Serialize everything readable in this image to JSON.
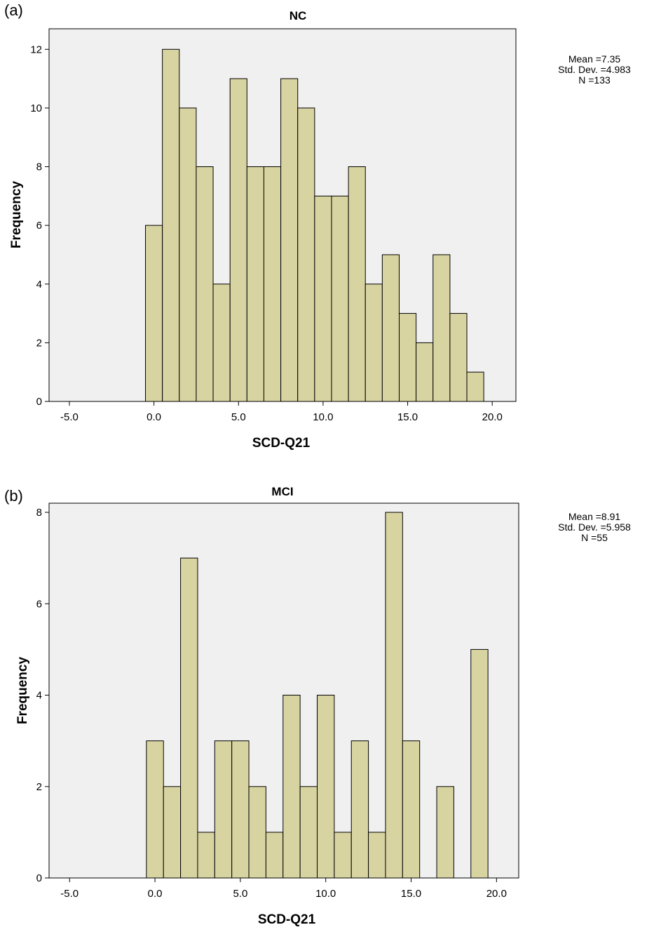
{
  "colors": {
    "plot_background": "#f0f0f0",
    "bar_fill": "#d8d4a2",
    "bar_edge": "#000000"
  },
  "panels": [
    {
      "label": "(a)",
      "stats": {
        "mean": "Mean =7.35",
        "sd": "Std. Dev. =4.983",
        "n": "N =133"
      }
    },
    {
      "label": "(b)",
      "stats": {
        "mean": "Mean =8.91",
        "sd": "Std. Dev. =5.958",
        "n": "N =55"
      }
    }
  ],
  "chart_data": [
    {
      "type": "bar",
      "title": "NC",
      "xlabel": "SCD-Q21",
      "ylabel": "Frequency",
      "xlim": [
        -6.2,
        21.4
      ],
      "ylim": [
        0,
        12.7
      ],
      "xticks": [
        -5,
        0,
        5,
        10,
        15,
        20
      ],
      "xtick_labels": [
        "-5.0",
        "0.0",
        "5.0",
        "10.0",
        "15.0",
        "20.0"
      ],
      "yticks": [
        0,
        2,
        4,
        6,
        8,
        10,
        12
      ],
      "bin_width": 1,
      "bin_centers": [
        0,
        1,
        2,
        3,
        4,
        5,
        6,
        7,
        8,
        9,
        10,
        11,
        12,
        13,
        14,
        15,
        16,
        17,
        18,
        19
      ],
      "values": [
        6,
        12,
        10,
        8,
        4,
        11,
        8,
        8,
        11,
        10,
        7,
        7,
        8,
        4,
        5,
        3,
        2,
        5,
        3,
        1
      ]
    },
    {
      "type": "bar",
      "title": "MCI",
      "xlabel": "SCD-Q21",
      "ylabel": "Frequency",
      "xlim": [
        -6.2,
        21.3
      ],
      "ylim": [
        0,
        8.2
      ],
      "xticks": [
        -5,
        0,
        5,
        10,
        15,
        20
      ],
      "xtick_labels": [
        "-5.0",
        "0.0",
        "5.0",
        "10.0",
        "15.0",
        "20.0"
      ],
      "yticks": [
        0,
        2,
        4,
        6,
        8
      ],
      "bin_width": 1,
      "bin_centers": [
        0,
        1,
        2,
        3,
        4,
        5,
        6,
        7,
        8,
        9,
        10,
        11,
        12,
        13,
        14,
        15,
        16,
        17,
        18,
        19
      ],
      "values": [
        3,
        2,
        7,
        1,
        3,
        3,
        2,
        1,
        4,
        2,
        4,
        1,
        3,
        1,
        8,
        3,
        0,
        2,
        0,
        5
      ]
    }
  ]
}
